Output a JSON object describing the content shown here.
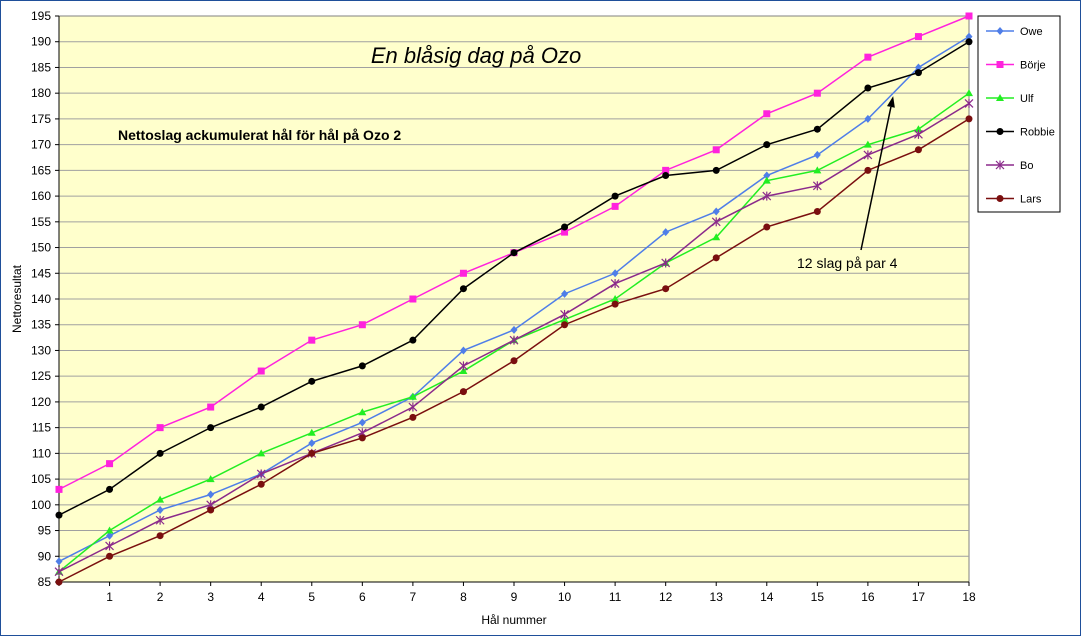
{
  "chart_data": {
    "type": "line",
    "title": "En blåsig dag på Ozo",
    "subtitle": "Nettoslag ackumulerat hål för hål på Ozo 2",
    "xlabel": "Hål nummer",
    "ylabel": "Nettoresultat",
    "x": [
      0,
      1,
      2,
      3,
      4,
      5,
      6,
      7,
      8,
      9,
      10,
      11,
      12,
      13,
      14,
      15,
      16,
      17,
      18
    ],
    "x_tick_labels": [
      "",
      "1",
      "2",
      "3",
      "4",
      "5",
      "6",
      "7",
      "8",
      "9",
      "10",
      "11",
      "12",
      "13",
      "14",
      "15",
      "16",
      "17",
      "18"
    ],
    "ylim": [
      85,
      195
    ],
    "y_ticks": [
      85,
      90,
      95,
      100,
      105,
      110,
      115,
      120,
      125,
      130,
      135,
      140,
      145,
      150,
      155,
      160,
      165,
      170,
      175,
      180,
      185,
      190,
      195
    ],
    "grid": true,
    "legend_position": "right",
    "plot_background": "#ffffcc",
    "series": [
      {
        "name": "Owe",
        "color": "#4f7ee8",
        "marker": "diamond",
        "values": [
          89,
          94,
          99,
          102,
          106,
          112,
          116,
          121,
          130,
          134,
          141,
          145,
          153,
          157,
          164,
          168,
          175,
          185,
          191
        ]
      },
      {
        "name": "Börje",
        "color": "#ff22dd",
        "marker": "square",
        "values": [
          103,
          108,
          115,
          119,
          126,
          132,
          135,
          140,
          145,
          149,
          153,
          158,
          165,
          169,
          176,
          180,
          187,
          191,
          195
        ]
      },
      {
        "name": "Ulf",
        "color": "#22ee22",
        "marker": "triangle",
        "values": [
          87,
          95,
          101,
          105,
          110,
          114,
          118,
          121,
          126,
          132,
          136,
          140,
          147,
          152,
          163,
          165,
          170,
          173,
          180
        ]
      },
      {
        "name": "Robbie",
        "color": "#000000",
        "marker": "circle",
        "values": [
          98,
          103,
          110,
          115,
          119,
          124,
          127,
          132,
          142,
          149,
          154,
          160,
          164,
          165,
          170,
          173,
          181,
          184,
          190
        ]
      },
      {
        "name": "Bo",
        "color": "#8b2a8b",
        "marker": "star",
        "values": [
          87,
          92,
          97,
          100,
          106,
          110,
          114,
          119,
          127,
          132,
          137,
          143,
          147,
          155,
          160,
          162,
          168,
          172,
          178
        ]
      },
      {
        "name": "Lars",
        "color": "#7a0f0f",
        "marker": "circle",
        "values": [
          85,
          90,
          94,
          99,
          104,
          110,
          113,
          117,
          122,
          128,
          135,
          139,
          142,
          148,
          154,
          157,
          165,
          169,
          175
        ]
      }
    ],
    "annotations": [
      {
        "text": "12 slag på par 4",
        "arrow_to_x": 16.5,
        "arrow_to_y": 180
      }
    ]
  }
}
